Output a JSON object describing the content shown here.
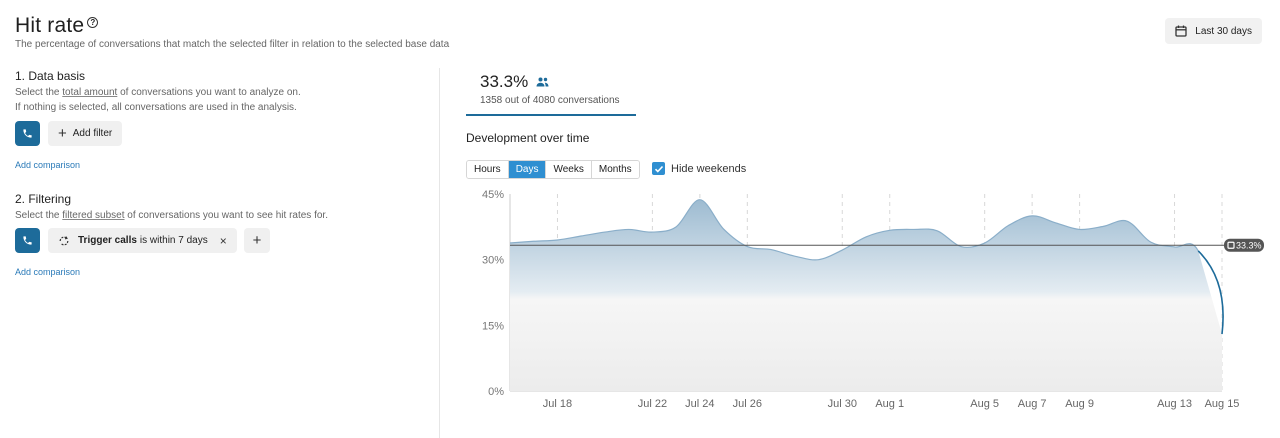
{
  "header": {
    "title": "Hit rate",
    "help_glyph": "?",
    "subtitle": "The percentage of conversations that match the selected filter in relation to the selected base data",
    "date_range": "Last 30 days",
    "date_icon": "calendar-icon"
  },
  "data_basis": {
    "title": "1. Data basis",
    "desc_prefix": "Select the ",
    "desc_link": "total amount",
    "desc_suffix": " of conversations you want to analyze on.",
    "desc_line2": "If nothing is selected, all conversations are used in the analysis.",
    "add_filter": "Add filter",
    "add_comparison": "Add comparison"
  },
  "filtering": {
    "title": "2. Filtering",
    "desc_prefix": "Select the ",
    "desc_link": "filtered subset",
    "desc_suffix": " of conversations you want to see hit rates for.",
    "filter_name": "Trigger calls",
    "filter_rest": "is within 7 days",
    "remove_glyph": "×",
    "add_glyph": "+",
    "add_comparison": "Add comparison"
  },
  "stat": {
    "value": "33.3%",
    "sub": "1358 out of 4080 conversations",
    "icon": "people-icon"
  },
  "chart_section": {
    "title": "Development over time",
    "granularity": [
      "Hours",
      "Days",
      "Weeks",
      "Months"
    ],
    "selected": "Days",
    "hide_weekends_label": "Hide weekends",
    "hide_weekends": true
  },
  "colors": {
    "accent": "#1d6b9a",
    "active": "#2f8fd1",
    "area_top": "#a7c2d6",
    "area_bottom": "#f0f0f0",
    "line": "#8aaec9"
  },
  "chart_data": {
    "type": "area",
    "x": [
      "Jul 16",
      "Jul 17",
      "Jul 18",
      "Jul 19",
      "Jul 20",
      "Jul 21",
      "Jul 22",
      "Jul 23",
      "Jul 24",
      "Jul 25",
      "Jul 26",
      "Jul 27",
      "Jul 28",
      "Jul 29",
      "Jul 30",
      "Jul 31",
      "Aug 1",
      "Aug 2",
      "Aug 3",
      "Aug 4",
      "Aug 5",
      "Aug 6",
      "Aug 7",
      "Aug 8",
      "Aug 9",
      "Aug 10",
      "Aug 11",
      "Aug 12",
      "Aug 13",
      "Aug 14",
      "Aug 15"
    ],
    "x_ticks": [
      "Jul 18",
      "Jul 22",
      "Jul 24",
      "Jul 26",
      "Jul 30",
      "Aug 1",
      "Aug 5",
      "Aug 7",
      "Aug 9",
      "Aug 13",
      "Aug 15"
    ],
    "values": [
      33.8,
      34.2,
      34.5,
      35.4,
      36.3,
      36.9,
      36.3,
      37.5,
      43.7,
      37.0,
      33.0,
      32.3,
      30.8,
      30.0,
      32.2,
      35.2,
      36.7,
      36.9,
      36.6,
      33.0,
      33.8,
      37.8,
      40.0,
      38.4,
      36.9,
      37.6,
      38.8,
      34.0,
      32.9,
      32.0,
      13.0
    ],
    "y_ticks": [
      "0%",
      "15%",
      "30%",
      "45%"
    ],
    "ylim": [
      0,
      45
    ],
    "reference_value": 33.3,
    "reference_label": "33.3%"
  }
}
